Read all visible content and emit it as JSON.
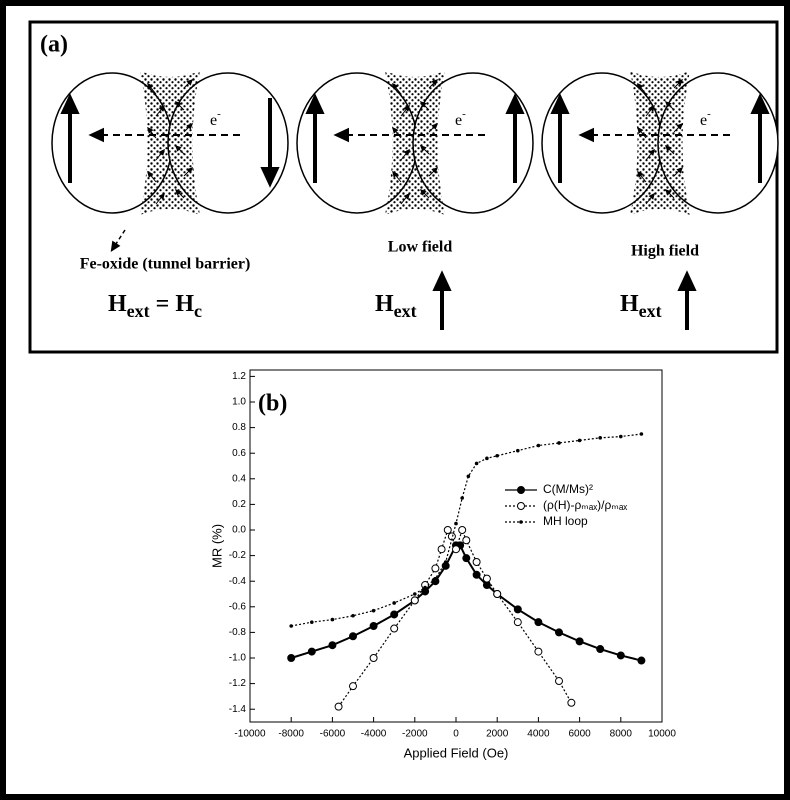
{
  "panel_a": {
    "label": "(a)",
    "electron": {
      "symbol": "e",
      "charge": "-"
    },
    "devices": [
      {
        "caption": "Fe-oxide (tunnel barrier)",
        "field": [
          {
            "text": "H",
            "sub": "ext"
          },
          {
            "text": "= H",
            "sub": "c"
          }
        ]
      },
      {
        "caption": "Low field",
        "field": [
          {
            "text": "H",
            "sub": "ext"
          }
        ]
      },
      {
        "caption": "High field",
        "field": [
          {
            "text": "H",
            "sub": "ext"
          }
        ]
      }
    ]
  },
  "chart_data": {
    "type": "line",
    "panel_label": "(b)",
    "x_label": "Applied Field (Oe)",
    "y_label": "MR (%)",
    "xlim": [
      -10000,
      10000
    ],
    "xticks": [
      -10000,
      -8000,
      -6000,
      -4000,
      -2000,
      0,
      2000,
      4000,
      6000,
      8000,
      10000
    ],
    "ylim": [
      -1.5,
      1.25
    ],
    "yticks": [
      1.2,
      {
        "value": 1,
        "label": "1.0"
      },
      0.8,
      0.6,
      0.4,
      0.2,
      {
        "value": 0,
        "label": "0.0"
      },
      -0.2,
      -0.4,
      -0.6,
      -0.8,
      {
        "value": -1,
        "label": "-1.0"
      },
      -1.2,
      -1.4
    ],
    "series": [
      {
        "name": "C(M/Ms)²",
        "color": "#000000",
        "marker": "filled-circle",
        "line": "solid",
        "x": [
          -8000,
          -7000,
          -6000,
          -5000,
          -4000,
          -3000,
          -2000,
          -1500,
          -1000,
          -500,
          0,
          200,
          500,
          1000,
          1500,
          2000,
          3000,
          4000,
          5000,
          6000,
          7000,
          8000,
          9000
        ],
        "values": [
          -1.0,
          -0.95,
          -0.9,
          -0.83,
          -0.75,
          -0.66,
          -0.55,
          -0.48,
          -0.4,
          -0.28,
          -0.12,
          -0.12,
          -0.22,
          -0.35,
          -0.43,
          -0.5,
          -0.62,
          -0.72,
          -0.8,
          -0.87,
          -0.93,
          -0.98,
          -1.02
        ]
      },
      {
        "name": "(ρ(H)-ρₘₐₓ)/ρₘₐₓ",
        "color": "#000000",
        "marker": "open-circle",
        "line": "dotted",
        "x": [
          -5700,
          -5000,
          -4000,
          -3000,
          -2000,
          -1500,
          -1000,
          -700,
          -400,
          -200,
          0,
          300,
          500,
          1000,
          1500,
          2000,
          3000,
          4000,
          5000,
          5600
        ],
        "values": [
          -1.38,
          -1.22,
          -1.0,
          -0.77,
          -0.55,
          -0.43,
          -0.3,
          -0.15,
          0.0,
          -0.05,
          -0.15,
          0.0,
          -0.08,
          -0.25,
          -0.38,
          -0.5,
          -0.72,
          -0.95,
          -1.18,
          -1.35
        ]
      },
      {
        "name": "MH loop",
        "color": "#000000",
        "marker": "dot",
        "line": "dotted",
        "x": [
          -8000,
          -7000,
          -6000,
          -5000,
          -4000,
          -3000,
          -2000,
          -1500,
          -1000,
          -500,
          0,
          300,
          600,
          1000,
          1500,
          2000,
          3000,
          4000,
          5000,
          6000,
          7000,
          8000,
          9000
        ],
        "values": [
          -0.75,
          -0.72,
          -0.7,
          -0.67,
          -0.63,
          -0.57,
          -0.5,
          -0.45,
          -0.38,
          -0.25,
          0.05,
          0.25,
          0.42,
          0.52,
          0.56,
          0.58,
          0.62,
          0.66,
          0.68,
          0.7,
          0.72,
          0.73,
          0.75
        ]
      }
    ]
  }
}
